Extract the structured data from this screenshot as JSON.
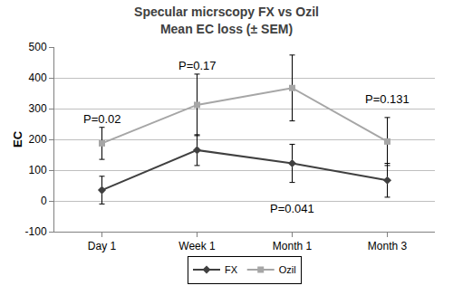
{
  "chart_data": {
    "type": "line",
    "title": "Specular micrscopy FX vs Ozil\nMean EC loss (± SEM)",
    "y_label": "EC",
    "categories": [
      "Day 1",
      "Week 1",
      "Month 1",
      "Month 3"
    ],
    "series": [
      {
        "name": "FX",
        "color": "#404040",
        "marker": "diamond",
        "values": [
          35,
          165,
          122,
          67
        ],
        "error": [
          45,
          50,
          62,
          55
        ]
      },
      {
        "name": "Ozil",
        "color": "#a6a6a6",
        "marker": "square",
        "values": [
          187,
          312,
          367,
          193
        ],
        "error": [
          52,
          100,
          107,
          78
        ]
      }
    ],
    "annotations": [
      {
        "text": "P=0.02",
        "category": "Day 1",
        "y": 265
      },
      {
        "text": "P=0.17",
        "category": "Week 1",
        "y": 440
      },
      {
        "text": "P=0.041",
        "category": "Month 1",
        "y": -25
      },
      {
        "text": "P=0.131",
        "category": "Month 3",
        "y": 330
      }
    ],
    "ylim": [
      -100,
      500
    ],
    "yticks": [
      -100,
      0,
      100,
      200,
      300,
      400,
      500
    ],
    "grid": true,
    "legend": "bottom"
  }
}
